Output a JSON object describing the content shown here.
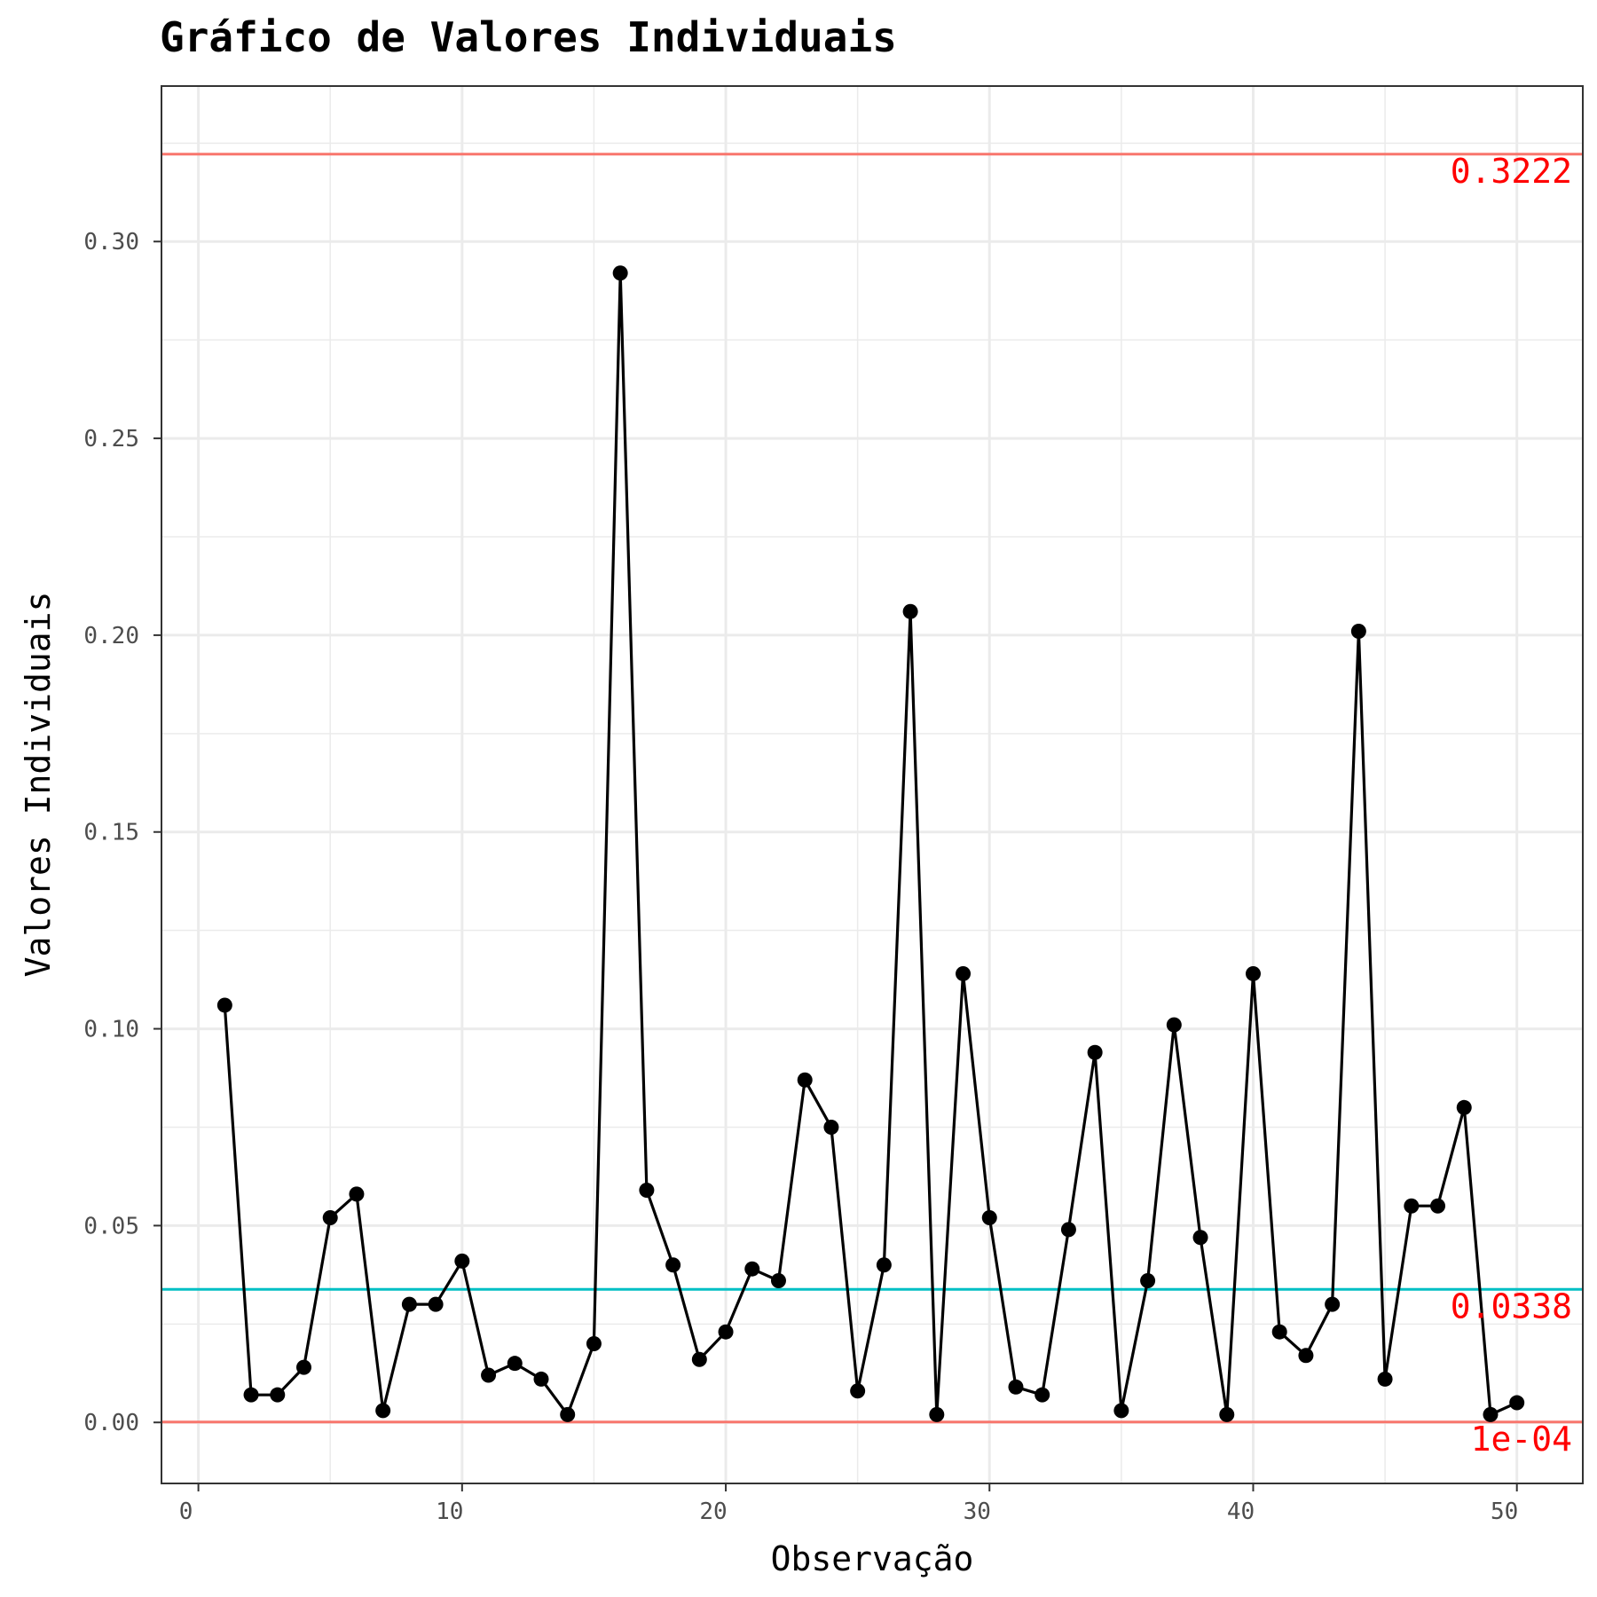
{
  "chart_data": {
    "type": "line",
    "title": "Gráfico de Valores Individuais",
    "xlabel": "Observação",
    "ylabel": "Valores Individuais",
    "xlim": [
      -1.4,
      52.5
    ],
    "ylim": [
      -0.0155,
      0.3395
    ],
    "x_ticks": [
      0,
      10,
      20,
      30,
      40,
      50
    ],
    "x_tick_labels": [
      "0",
      "10",
      "20",
      "30",
      "40",
      "50"
    ],
    "y_ticks": [
      0.0,
      0.05,
      0.1,
      0.15,
      0.2,
      0.25,
      0.3
    ],
    "y_tick_labels": [
      "0.00",
      "0.05",
      "0.10",
      "0.15",
      "0.20",
      "0.25",
      "0.30"
    ],
    "grid": true,
    "x": [
      1,
      2,
      3,
      4,
      5,
      6,
      7,
      8,
      9,
      10,
      11,
      12,
      13,
      14,
      15,
      16,
      17,
      18,
      19,
      20,
      21,
      22,
      23,
      24,
      25,
      26,
      27,
      28,
      29,
      30,
      31,
      32,
      33,
      34,
      35,
      36,
      37,
      38,
      39,
      40,
      41,
      42,
      43,
      44,
      45,
      46,
      47,
      48,
      49,
      50
    ],
    "values": [
      0.106,
      0.007,
      0.007,
      0.014,
      0.052,
      0.058,
      0.003,
      0.03,
      0.03,
      0.041,
      0.012,
      0.015,
      0.011,
      0.002,
      0.02,
      0.292,
      0.059,
      0.04,
      0.016,
      0.023,
      0.039,
      0.036,
      0.087,
      0.075,
      0.008,
      0.04,
      0.206,
      0.002,
      0.114,
      0.052,
      0.009,
      0.007,
      0.049,
      0.094,
      0.003,
      0.036,
      0.101,
      0.047,
      0.002,
      0.114,
      0.023,
      0.017,
      0.03,
      0.201,
      0.011,
      0.055,
      0.055,
      0.08,
      0.002,
      0.005
    ],
    "reference_lines": [
      {
        "value": 0.3222,
        "label": "0.3222",
        "color": "#F8766D"
      },
      {
        "value": 0.0338,
        "label": "0.0338",
        "color": "#00BFC4"
      },
      {
        "value": 0.0001,
        "label": "1e-04",
        "color": "#F8766D"
      }
    ],
    "label_color": "#FF0000",
    "series_color": "#000000"
  }
}
